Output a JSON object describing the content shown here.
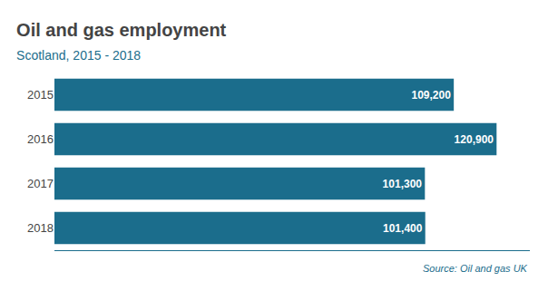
{
  "chart_data": {
    "type": "bar",
    "orientation": "horizontal",
    "title": "Oil and gas employment",
    "subtitle": "Scotland, 2015 - 2018",
    "source": "Source: Oil and gas UK",
    "categories": [
      "2015",
      "2016",
      "2017",
      "2018"
    ],
    "values": [
      109200,
      120900,
      101300,
      101400
    ],
    "value_labels": [
      "109,200",
      "120,900",
      "101,300",
      "101,400"
    ],
    "data_labels": true,
    "color": "#1b6d8c",
    "xlim": [
      0,
      130000
    ],
    "grid": false,
    "tick_labels": "y"
  }
}
